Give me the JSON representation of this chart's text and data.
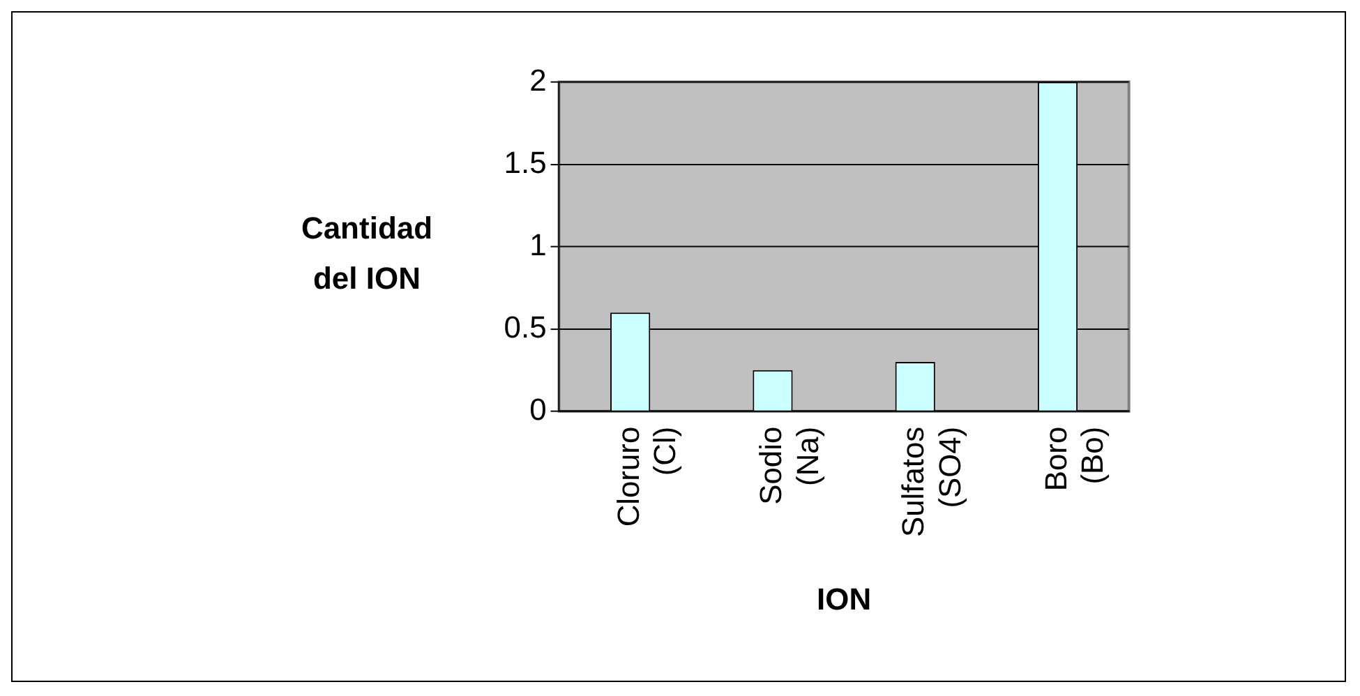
{
  "chart_data": {
    "type": "bar",
    "xlabel": "ION",
    "ylabel": "Cantidad del ION",
    "categories": [
      "Cloruro (Cl)",
      "Sodio (Na)",
      "Sulfatos (SO4)",
      "Boro (Bo)"
    ],
    "values": [
      0.6,
      0.25,
      0.3,
      2
    ],
    "color": "#ccffff",
    "ylim": [
      0,
      2
    ],
    "yticks": [
      0,
      0.5,
      1,
      1.5,
      2
    ],
    "grid": "y",
    "legend": false
  }
}
